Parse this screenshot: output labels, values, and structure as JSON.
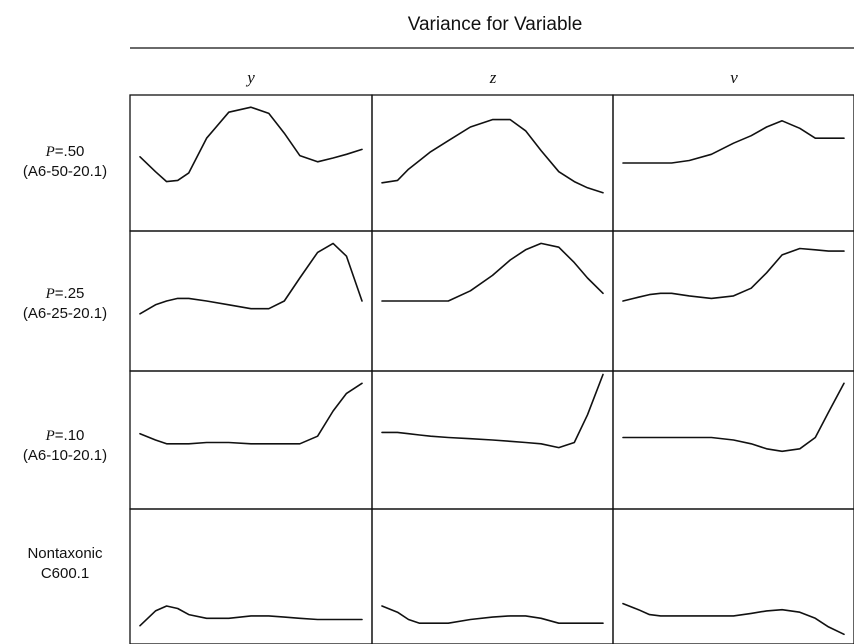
{
  "chart_data": {
    "type": "line",
    "title": "Variance for Variable",
    "columns": [
      "y",
      "z",
      "v"
    ],
    "rows": [
      {
        "label_p": "P",
        "label_val": "=.50",
        "label_2": "(A6-50-20.1)"
      },
      {
        "label_p": "P",
        "label_val": "=.25",
        "label_2": "(A6-25-20.1)"
      },
      {
        "label_p": "P",
        "label_val": "=.10",
        "label_2": "(A6-10-20.1)"
      },
      {
        "label_p": "",
        "label_val": "Nontaxonic",
        "label_2": "C600.1"
      }
    ],
    "x": [
      0,
      0.07,
      0.12,
      0.17,
      0.22,
      0.3,
      0.4,
      0.5,
      0.58,
      0.65,
      0.72,
      0.8,
      0.87,
      0.93,
      1
    ],
    "panels": [
      [
        [
          0.55,
          0.43,
          0.35,
          0.36,
          0.42,
          0.7,
          0.91,
          0.95,
          0.9,
          0.74,
          0.56,
          0.51,
          0.54,
          0.57,
          0.61
        ],
        [
          0.4,
          0.47,
          0.5,
          0.52,
          0.52,
          0.5,
          0.47,
          0.44,
          0.44,
          0.5,
          0.68,
          0.88,
          0.95,
          0.85,
          0.5
        ],
        [
          0.55,
          0.5,
          0.47,
          0.47,
          0.47,
          0.48,
          0.48,
          0.47,
          0.47,
          0.47,
          0.47,
          0.53,
          0.73,
          0.87,
          0.95
        ],
        [
          0.1,
          0.22,
          0.26,
          0.24,
          0.19,
          0.16,
          0.16,
          0.18,
          0.18,
          0.17,
          0.16,
          0.15,
          0.15,
          0.15,
          0.15
        ]
      ],
      [
        [
          0.34,
          0.36,
          0.45,
          0.52,
          0.59,
          0.68,
          0.79,
          0.85,
          0.85,
          0.76,
          0.6,
          0.43,
          0.35,
          0.3,
          0.26
        ],
        [
          0.5,
          0.5,
          0.5,
          0.5,
          0.5,
          0.5,
          0.58,
          0.7,
          0.82,
          0.9,
          0.95,
          0.92,
          0.8,
          0.68,
          0.56
        ],
        [
          0.56,
          0.56,
          0.55,
          0.54,
          0.53,
          0.52,
          0.51,
          0.5,
          0.49,
          0.48,
          0.47,
          0.44,
          0.48,
          0.7,
          1.02
        ],
        [
          0.26,
          0.21,
          0.15,
          0.12,
          0.12,
          0.12,
          0.15,
          0.17,
          0.18,
          0.18,
          0.16,
          0.12,
          0.12,
          0.12,
          0.12
        ]
      ],
      [
        [
          0.5,
          0.5,
          0.5,
          0.5,
          0.5,
          0.52,
          0.57,
          0.66,
          0.72,
          0.79,
          0.84,
          0.78,
          0.7,
          0.7,
          0.7
        ],
        [
          0.5,
          0.53,
          0.55,
          0.56,
          0.56,
          0.54,
          0.52,
          0.54,
          0.6,
          0.72,
          0.86,
          0.91,
          0.9,
          0.89,
          0.89
        ],
        [
          0.52,
          0.52,
          0.52,
          0.52,
          0.52,
          0.52,
          0.52,
          0.5,
          0.47,
          0.43,
          0.41,
          0.43,
          0.52,
          0.72,
          0.95
        ],
        [
          0.28,
          0.23,
          0.19,
          0.18,
          0.18,
          0.18,
          0.18,
          0.18,
          0.2,
          0.22,
          0.23,
          0.21,
          0.16,
          0.09,
          0.03
        ]
      ]
    ]
  }
}
